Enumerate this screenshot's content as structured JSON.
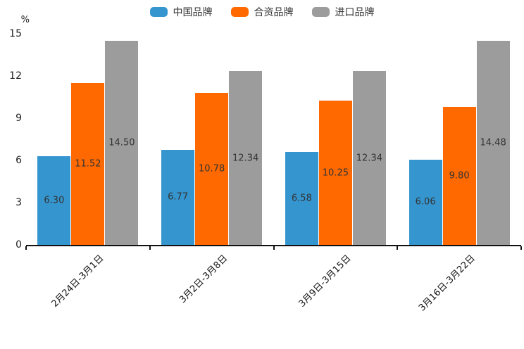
{
  "chart_data": {
    "type": "bar",
    "title": "",
    "legend_position": "top",
    "grid": false,
    "y_axis": {
      "unit_label": "%",
      "min": 0,
      "max": 15,
      "ticks": [
        0,
        3,
        6,
        9,
        12,
        15
      ]
    },
    "categories": [
      "2月24日-3月1日",
      "3月2日-3月8日",
      "3月9日-3月15日",
      "3月16日-3月22日"
    ],
    "series": [
      {
        "name": "中国品牌",
        "color": "#3595CF",
        "values": [
          6.3,
          6.77,
          6.58,
          6.06
        ]
      },
      {
        "name": "合资品牌",
        "color": "#FF6900",
        "values": [
          11.52,
          10.78,
          10.25,
          9.8
        ]
      },
      {
        "name": "进口品牌",
        "color": "#9C9C9C",
        "values": [
          14.5,
          12.34,
          12.34,
          14.48
        ]
      }
    ],
    "value_label_decimals": 2
  },
  "colors": {
    "background": "#FFFFFF",
    "axis_line": "#111111",
    "tick_text": "#222222",
    "value_label_text": "#333333",
    "legend_text": "#333333"
  }
}
